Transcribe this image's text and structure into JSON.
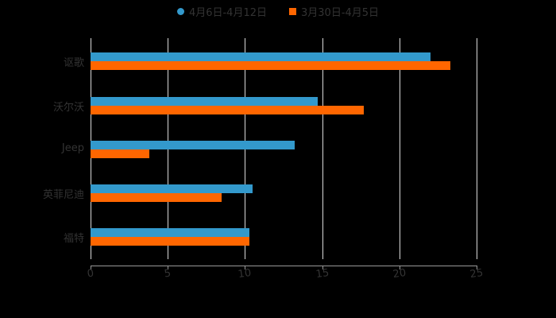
{
  "legend": [
    {
      "label": "4月6日-4月12日",
      "color": "#3399CC",
      "marker": "circle"
    },
    {
      "label": "3月30日-4月5日",
      "color": "#FF6600",
      "marker": "square"
    }
  ],
  "axis": {
    "ticks": [
      "0",
      "5",
      "10",
      "15",
      "20",
      "25"
    ]
  },
  "chart_data": {
    "type": "bar",
    "orientation": "horizontal",
    "title": "",
    "xlabel": "",
    "ylabel": "",
    "categories": [
      "讴歌",
      "沃尔沃",
      "Jeep",
      "英菲尼迪",
      "福特"
    ],
    "series": [
      {
        "name": "4月6日-4月12日",
        "color": "#3399CC",
        "values": [
          22.0,
          14.7,
          13.2,
          10.5,
          10.3
        ]
      },
      {
        "name": "3月30日-4月5日",
        "color": "#FF6600",
        "values": [
          23.3,
          17.7,
          3.8,
          8.5,
          10.3
        ]
      }
    ],
    "xlim": [
      0,
      25
    ],
    "xticks": [
      0,
      5,
      10,
      15,
      20,
      25
    ],
    "grid": true,
    "legend_position": "top"
  }
}
